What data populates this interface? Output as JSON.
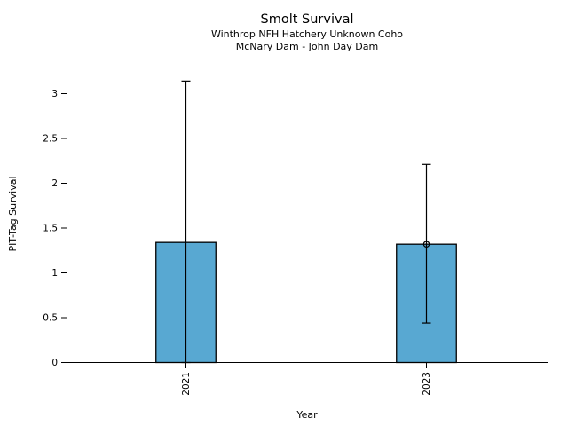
{
  "chart_data": {
    "type": "bar",
    "title": "Smolt Survival",
    "subtitles": [
      "Winthrop NFH Hatchery Unknown Coho",
      "McNary Dam - John Day Dam"
    ],
    "xlabel": "Year",
    "ylabel": "PIT-Tag Survival",
    "categories": [
      "2021",
      "2023"
    ],
    "values": [
      1.34,
      1.32
    ],
    "error_low": [
      0.0,
      0.44
    ],
    "error_high": [
      3.14,
      2.21
    ],
    "markers": [
      null,
      1.32
    ],
    "marker_style": "open-circle",
    "y_ticks": [
      "0",
      "0.5",
      "1",
      "1.5",
      "2",
      "2.5",
      "3"
    ],
    "ylim": [
      0,
      3.3
    ],
    "grid": false,
    "legend": false,
    "bar_color": "#58A8D2",
    "bar_edge_color": "#000000",
    "error_color": "#000000",
    "axis_color": "#000000"
  }
}
